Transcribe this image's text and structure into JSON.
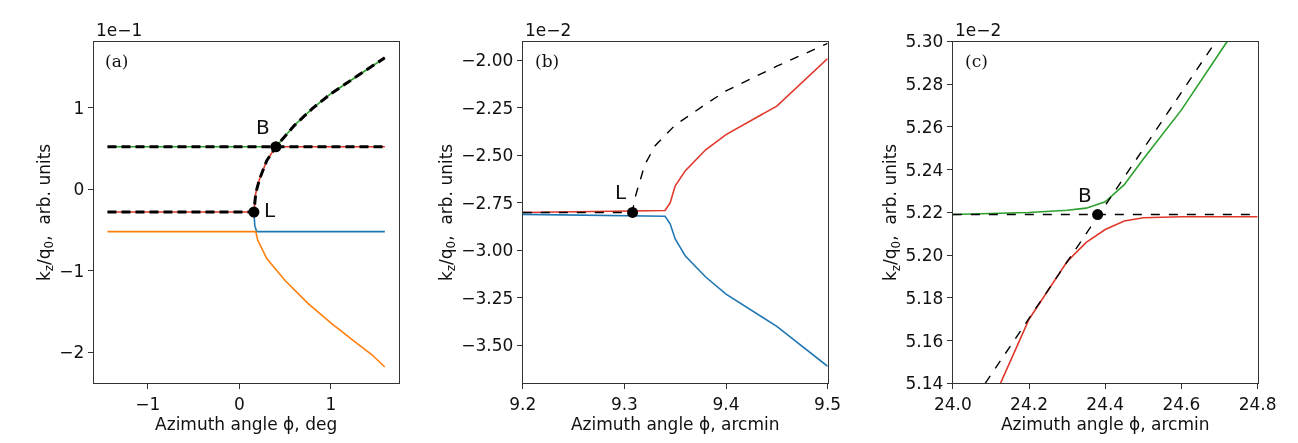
{
  "chart_data": [
    {
      "type": "line",
      "xlabel": "Azimuth angle ϕ, deg",
      "ylabel": "k$_{z}$/q$_{0}$,  arb. units",
      "xlim": [
        -1.59,
        1.74
      ],
      "ylim": [
        -2.38,
        1.81
      ],
      "xticks": [
        {
          "value": -1,
          "label": "−1"
        },
        0,
        1
      ],
      "yticks": [
        {
          "value": -2,
          "label": "−2"
        },
        {
          "value": -1,
          "label": "−1"
        },
        0,
        1
      ],
      "annotations": [
        "1e−1",
        "(a)",
        {
          "text": "B",
          "x": 0.4,
          "y": 0.52
        },
        {
          "text": "L",
          "x": 0.16,
          "y": -0.28
        }
      ],
      "series": [
        {
          "color": "#2ca02c",
          "line_style": "solid",
          "x": [
            -1.44,
            0.4,
            0.6,
            0.8,
            1.0,
            1.2,
            1.4,
            1.59
          ],
          "values": [
            0.52,
            0.52,
            0.78,
            0.99,
            1.17,
            1.32,
            1.47,
            1.61
          ]
        },
        {
          "color": "#e0382c",
          "line_style": "solid",
          "x": [
            -1.44,
            0.16,
            0.18,
            0.22,
            0.3,
            0.4,
            1.59
          ],
          "values": [
            -0.28,
            -0.28,
            -0.05,
            0.12,
            0.35,
            0.52,
            0.52
          ]
        },
        {
          "color": "#1f77b4",
          "line_style": "solid",
          "x": [
            0.16,
            0.17,
            0.19,
            1.59
          ],
          "values": [
            -0.28,
            -0.45,
            -0.52,
            -0.52
          ]
        },
        {
          "color": "#ff7f0e",
          "line_style": "solid",
          "x": [
            -1.44,
            0.18,
            0.2,
            0.3,
            0.5,
            0.75,
            1.0,
            1.25,
            1.45,
            1.59
          ],
          "values": [
            -0.52,
            -0.52,
            -0.62,
            -0.85,
            -1.12,
            -1.4,
            -1.64,
            -1.86,
            -2.03,
            -2.18
          ]
        },
        {
          "color": "#000000",
          "line_style": "dashed",
          "x": [
            -1.44,
            1.59
          ],
          "values": [
            0.52,
            0.52
          ]
        },
        {
          "color": "#000000",
          "line_style": "dashed",
          "x": [
            -1.44,
            0.16,
            0.18,
            0.22,
            0.3,
            0.4,
            0.6,
            0.8,
            1.0,
            1.2,
            1.4,
            1.59
          ],
          "values": [
            -0.28,
            -0.28,
            -0.05,
            0.12,
            0.35,
            0.52,
            0.78,
            0.99,
            1.17,
            1.32,
            1.47,
            1.61
          ]
        },
        {
          "type": "scatter",
          "marker": "circle",
          "color": "#000000",
          "x": [
            0.16,
            0.4
          ],
          "values": [
            -0.28,
            0.52
          ]
        }
      ]
    },
    {
      "type": "line",
      "xlabel": "Azimuth angle ϕ, arcmin",
      "ylabel": "k$_{z}$/q$_{0}$,  arb. units",
      "xlim": [
        9.2,
        9.5
      ],
      "ylim": [
        -3.7,
        -1.9
      ],
      "xticks": [
        9.2,
        9.3,
        9.4,
        9.5
      ],
      "yticks": [
        {
          "value": -3.5,
          "label": "−3.50"
        },
        {
          "value": -3.25,
          "label": "−3.25"
        },
        {
          "value": -3.0,
          "label": "−3.00"
        },
        {
          "value": -2.75,
          "label": "−2.75"
        },
        {
          "value": -2.5,
          "label": "−2.50"
        },
        {
          "value": -2.25,
          "label": "−2.25"
        },
        {
          "value": -2.0,
          "label": "−2.00"
        }
      ],
      "annotations": [
        "1e−2",
        "(b)",
        {
          "text": "L",
          "x": 9.308,
          "y": -2.8
        }
      ],
      "series": [
        {
          "color": "#e0382c",
          "line_style": "solid",
          "x": [
            9.2,
            9.34,
            9.345,
            9.35,
            9.36,
            9.38,
            9.4,
            9.45,
            9.5
          ],
          "values": [
            -2.8,
            -2.79,
            -2.75,
            -2.66,
            -2.58,
            -2.47,
            -2.39,
            -2.24,
            -1.99
          ]
        },
        {
          "color": "#1f77b4",
          "line_style": "solid",
          "x": [
            9.2,
            9.34,
            9.345,
            9.35,
            9.36,
            9.38,
            9.4,
            9.45,
            9.5
          ],
          "values": [
            -2.81,
            -2.82,
            -2.86,
            -2.94,
            -3.03,
            -3.14,
            -3.23,
            -3.4,
            -3.61
          ]
        },
        {
          "color": "#000000",
          "line_style": "dashed",
          "x": [
            9.2,
            9.308,
            9.31,
            9.32,
            9.33,
            9.35,
            9.38,
            9.4,
            9.45,
            9.5
          ],
          "values": [
            -2.8,
            -2.8,
            -2.73,
            -2.55,
            -2.45,
            -2.34,
            -2.23,
            -2.16,
            -2.03,
            -1.91
          ]
        },
        {
          "type": "scatter",
          "marker": "circle",
          "color": "#000000",
          "x": [
            9.308
          ],
          "values": [
            -2.8
          ]
        }
      ]
    },
    {
      "type": "line",
      "xlabel": "Azimuth angle ϕ, arcmin",
      "ylabel": "k$_{z}$/q$_{0}$,  arb. units",
      "xlim": [
        24.0,
        24.8
      ],
      "ylim": [
        5.14,
        5.3
      ],
      "xticks": [
        {
          "value": 24.0,
          "label": "24.0"
        },
        24.2,
        24.4,
        24.6,
        24.8
      ],
      "yticks": [
        5.14,
        5.16,
        5.18,
        {
          "value": 5.2,
          "label": "5.20"
        },
        5.22,
        5.24,
        5.26,
        5.28,
        {
          "value": 5.3,
          "label": "5.30"
        }
      ],
      "annotations": [
        "1e−2",
        "(c)",
        {
          "text": "B",
          "x": 24.38,
          "y": 5.219
        }
      ],
      "series": [
        {
          "color": "#2ca02c",
          "line_style": "solid",
          "x": [
            24.0,
            24.2,
            24.3,
            24.35,
            24.4,
            24.45,
            24.5,
            24.6,
            24.72
          ],
          "values": [
            5.219,
            5.22,
            5.221,
            5.222,
            5.225,
            5.233,
            5.245,
            5.268,
            5.3
          ]
        },
        {
          "color": "#e0382c",
          "line_style": "solid",
          "x": [
            24.125,
            24.2,
            24.3,
            24.35,
            24.4,
            24.45,
            24.5,
            24.6,
            24.8
          ],
          "values": [
            5.14,
            5.17,
            5.197,
            5.206,
            5.212,
            5.216,
            5.2175,
            5.218,
            5.218
          ]
        },
        {
          "color": "#000000",
          "line_style": "dashed",
          "x": [
            24.0,
            24.8
          ],
          "values": [
            5.219,
            5.219
          ]
        },
        {
          "color": "#000000",
          "line_style": "dashed",
          "x": [
            24.085,
            24.69
          ],
          "values": [
            5.14,
            5.3
          ]
        },
        {
          "type": "scatter",
          "marker": "circle",
          "color": "#000000",
          "x": [
            24.38
          ],
          "values": [
            5.219
          ]
        }
      ]
    }
  ]
}
